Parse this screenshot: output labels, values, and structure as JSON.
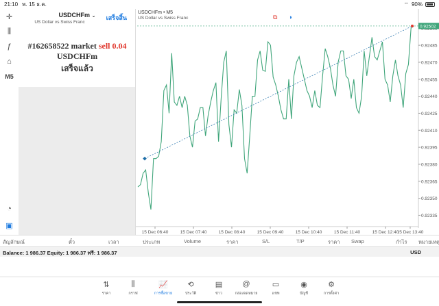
{
  "status": {
    "time": "21:10",
    "date": "พ. 15 ธ.ค.",
    "battery": "90%"
  },
  "left_tools": [
    {
      "name": "crosshair-icon",
      "glyph": "✛"
    },
    {
      "name": "indicators-icon",
      "glyph": "⫼"
    },
    {
      "name": "function-icon",
      "glyph": "ƒ"
    },
    {
      "name": "objects-icon",
      "glyph": "⌂"
    },
    {
      "name": "timeframe-label",
      "glyph": "M5"
    }
  ],
  "panel": {
    "symbol": "USDCHFm",
    "symbol_desc": "US Dollar vs Swiss Franc",
    "done_label": "เสร็จสิ้น",
    "order_line1_prefix": "#162658522 market ",
    "order_line1_sell": "sell 0.04",
    "order_line2": "USDCHFm",
    "order_line3": "เสร็จแล้ว"
  },
  "chart": {
    "title": "USDCHFm • M5",
    "subtitle": "US Dollar vs Swiss Franc",
    "price_labels": [
      "0.92500",
      "0.92485",
      "0.92470",
      "0.92455",
      "0.92440",
      "0.92425",
      "0.92410",
      "0.92395",
      "0.92380",
      "0.92365",
      "0.92350",
      "0.92335"
    ],
    "current_price": "0.92502",
    "time_labels": [
      "15 Dec 06:40",
      "15 Dec 07:40",
      "15 Dec 08:40",
      "15 Dec 09:40",
      "15 Dec 10:40",
      "15 Dec 11:40",
      "15 Dec 12:40",
      "15 Dec 13:40"
    ],
    "line_color": "#3fa57a",
    "trend_color": "#1e6ea8",
    "close_marker_color": "#e0362c"
  },
  "chart_data": {
    "type": "line",
    "series": [
      {
        "name": "USDCHFm",
        "values": [
          0.9236,
          0.92362,
          0.92372,
          0.92375,
          0.92355,
          0.9234,
          0.92385,
          0.92385,
          0.92387,
          0.924,
          0.92445,
          0.9245,
          0.92425,
          0.92478,
          0.92435,
          0.92432,
          0.9244,
          0.9243,
          0.9244,
          0.92432,
          0.92405,
          0.92395,
          0.92418,
          0.9242,
          0.9243,
          0.9243,
          0.92405,
          0.92423,
          0.92435,
          0.92445,
          0.92452,
          0.924,
          0.92438,
          0.9247,
          0.9248,
          0.92415,
          0.92395,
          0.92428,
          0.92425,
          0.92446,
          0.92432,
          0.92385,
          0.92372,
          0.92405,
          0.9244,
          0.9244,
          0.92472,
          0.9248,
          0.92463,
          0.92462,
          0.92488,
          0.92485,
          0.92457,
          0.9245,
          0.9244,
          0.92428,
          0.9242,
          0.9242,
          0.92455,
          0.9242,
          0.92458,
          0.9247,
          0.92475,
          0.92465,
          0.92455,
          0.92445,
          0.9244,
          0.9243,
          0.92445,
          0.92432,
          0.9243,
          0.92458,
          0.92482,
          0.92475,
          0.92465,
          0.9245,
          0.9244,
          0.9247,
          0.9248,
          0.9248,
          0.92458,
          0.92455,
          0.92438,
          0.92455,
          0.9243,
          0.92425,
          0.9244,
          0.9248,
          0.92458,
          0.92475,
          0.92492,
          0.92475,
          0.92472,
          0.9248,
          0.92488,
          0.92455,
          0.9245,
          0.92435,
          0.92458,
          0.92472,
          0.92458,
          0.9245,
          0.9243,
          0.9246,
          0.92468,
          0.925,
          0.92502
        ]
      }
    ],
    "trend_line": {
      "from": 0.92385,
      "to": 0.92502
    },
    "ylim": [
      0.92325,
      0.92505
    ]
  },
  "columns": [
    "สัญลักษณ์",
    "ตั๋ว",
    "เวลา",
    "ประเภท",
    "Volume",
    "ราคา",
    "S/L",
    "T/P",
    "ราคา",
    "Swap",
    "กำไร",
    "หมายเหตุ"
  ],
  "balance": {
    "text": "Balance: 1 986.37 Equity: 1 986.37 ฟรี: 1 986.37",
    "currency": "USD"
  },
  "nav": [
    {
      "name": "quotes-nav",
      "icon": "⇅",
      "label": "ราคา"
    },
    {
      "name": "chart-nav",
      "icon": "⫼",
      "label": "กราฟ"
    },
    {
      "name": "trade-nav",
      "icon": "📈",
      "label": "การซื้อขาย",
      "active": true
    },
    {
      "name": "history-nav",
      "icon": "⟲",
      "label": "ประวัติ"
    },
    {
      "name": "news-nav",
      "icon": "▤",
      "label": "ข่าว"
    },
    {
      "name": "mailbox-nav",
      "icon": "@",
      "label": "กล่องจดหมาย"
    },
    {
      "name": "chat-nav",
      "icon": "▭",
      "label": "แชท"
    },
    {
      "name": "accounts-nav",
      "icon": "◉",
      "label": "บัญชี"
    },
    {
      "name": "settings-nav",
      "icon": "⚙",
      "label": "การตั้งค่า"
    }
  ]
}
